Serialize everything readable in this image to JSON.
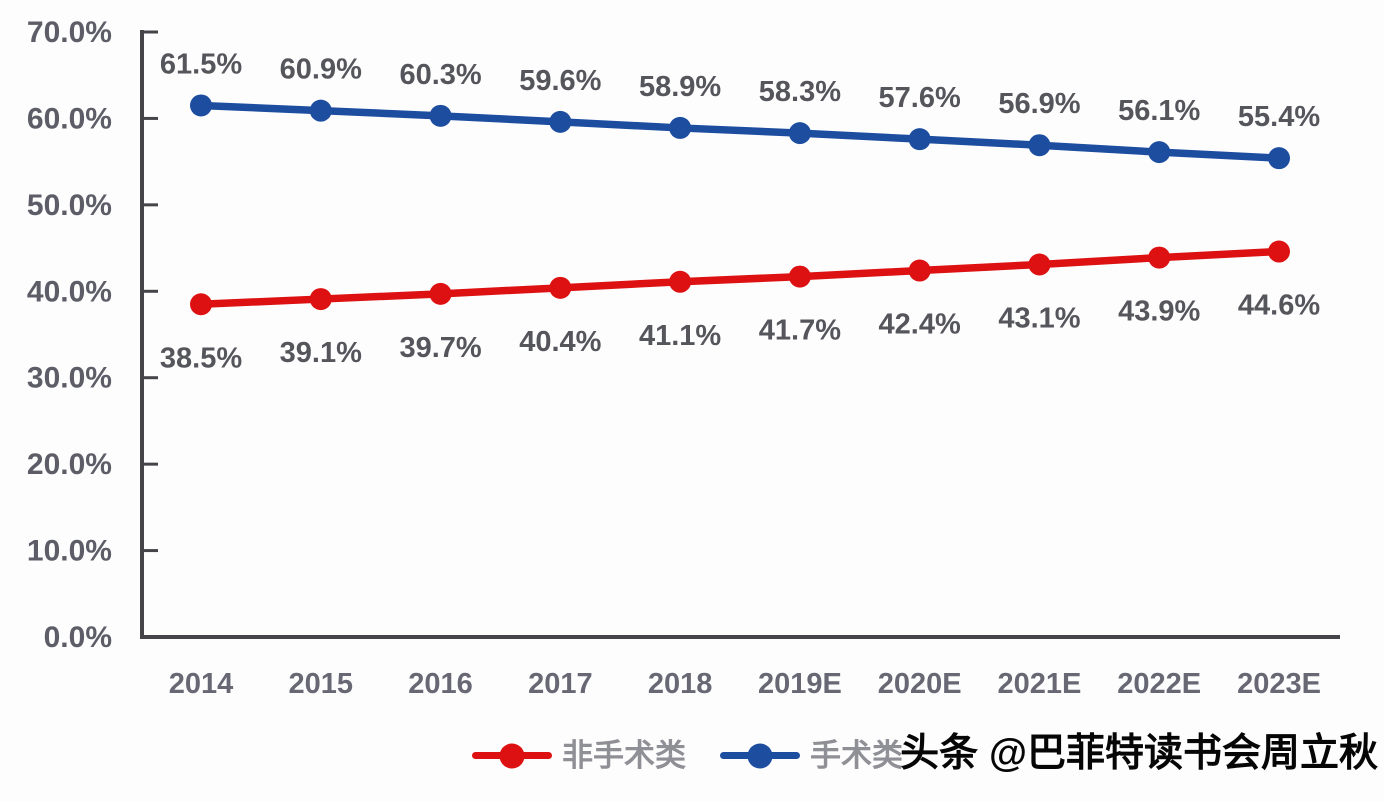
{
  "watermark": "头条 @巴菲特读书会周立秋",
  "colors": {
    "non_surgical": "#dd1111",
    "surgical": "#1d4d9f",
    "axis": "#454549",
    "tick_label": "#5d5d68",
    "year_label": "#686874",
    "data_label": "#55555c",
    "legend_label": "#8f8f96",
    "watermark_text": "#060606",
    "background": "#fdfdfe"
  },
  "chart_data": {
    "type": "line",
    "title": "",
    "xlabel": "",
    "ylabel": "",
    "categories": [
      "2014",
      "2015",
      "2016",
      "2017",
      "2018",
      "2019E",
      "2020E",
      "2021E",
      "2022E",
      "2023E"
    ],
    "series": [
      {
        "id": "non-surgical",
        "name": "非手术类",
        "color": "#dd1111",
        "label_position": "below",
        "values": [
          38.5,
          39.1,
          39.7,
          40.4,
          41.1,
          41.7,
          42.4,
          43.1,
          43.9,
          44.6
        ]
      },
      {
        "id": "surgical",
        "name": "手术类",
        "color": "#1d4d9f",
        "label_position": "above",
        "values": [
          61.5,
          60.9,
          60.3,
          59.6,
          58.9,
          58.3,
          57.6,
          56.9,
          56.1,
          55.4
        ]
      }
    ],
    "ylim": [
      0,
      70
    ],
    "yticks": [
      "0.0%",
      "10.0%",
      "20.0%",
      "30.0%",
      "40.0%",
      "50.0%",
      "60.0%",
      "70.0%"
    ],
    "value_suffix": "%",
    "grid": false,
    "legend_position": "bottom"
  }
}
